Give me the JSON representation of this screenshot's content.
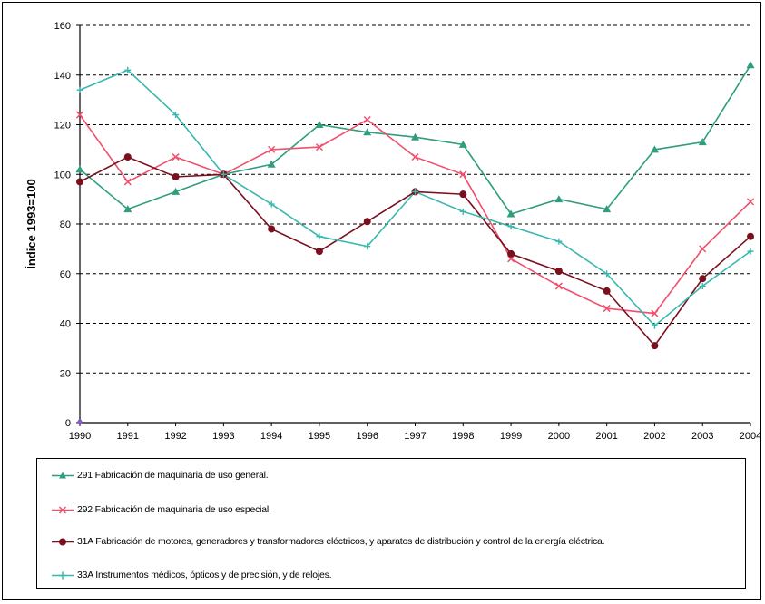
{
  "chart_data": {
    "type": "line",
    "title": "",
    "xlabel": "",
    "ylabel": "Índice 1993=100",
    "ylim": [
      0,
      160
    ],
    "y_ticks": [
      "0",
      "20",
      "40",
      "60",
      "80",
      "100",
      "120",
      "140",
      "160"
    ],
    "categories": [
      "1990",
      "1991",
      "1992",
      "1993",
      "1994",
      "1995",
      "1996",
      "1997",
      "1998",
      "1999",
      "2000",
      "2001",
      "2002",
      "2003",
      "2004"
    ],
    "grid": "horizontal dashed",
    "legend_position": "bottom",
    "series": [
      {
        "name": "291 Fabricación de maquinaria de uso general.",
        "color": "#2e9e7e",
        "marker": "triangle",
        "values": [
          102,
          86,
          93,
          100,
          104,
          120,
          117,
          115,
          112,
          84,
          90,
          86,
          110,
          113,
          144
        ]
      },
      {
        "name": "292 Fabricación de maquinaria de uso especial.",
        "color": "#f0506e",
        "marker": "x",
        "values": [
          124,
          97,
          107,
          100,
          110,
          111,
          122,
          107,
          100,
          66,
          55,
          46,
          44,
          70,
          89
        ]
      },
      {
        "name": "31A Fabricación de motores, generadores y transformadores eléctricos, y aparatos de distribución y control de la energía eléctrica.",
        "color": "#7a0f1e",
        "marker": "circle",
        "values": [
          97,
          107,
          99,
          100,
          78,
          69,
          81,
          93,
          92,
          68,
          61,
          53,
          31,
          58,
          75
        ]
      },
      {
        "name": "33A Instrumentos médicos, ópticos y de precisión, y de relojes.",
        "color": "#3ab8ae",
        "marker": "plus",
        "values": [
          134,
          142,
          124,
          100,
          88,
          75,
          71,
          93,
          85,
          79,
          73,
          60,
          39,
          55,
          69
        ]
      }
    ]
  }
}
